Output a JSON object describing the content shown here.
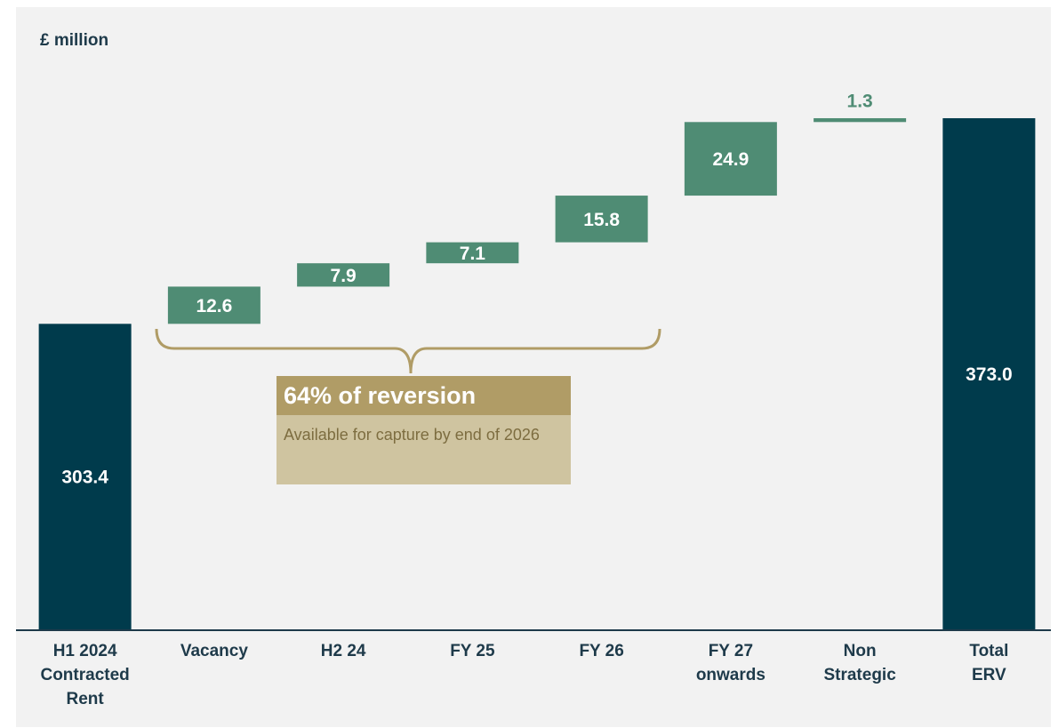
{
  "chart_data": {
    "type": "waterfall",
    "y_label": "£ million",
    "categories": [
      [
        "H1 2024",
        "Contracted",
        "Rent"
      ],
      [
        "Vacancy"
      ],
      [
        "H2 24"
      ],
      [
        "FY 25"
      ],
      [
        "FY 26"
      ],
      [
        "FY 27",
        "onwards"
      ],
      [
        "Non",
        "Strategic"
      ],
      [
        "Total",
        "ERV"
      ]
    ],
    "values": [
      303.4,
      12.6,
      7.9,
      7.1,
      15.8,
      24.9,
      1.3,
      373.0
    ],
    "value_labels": [
      "303.4",
      "12.6",
      "7.9",
      "7.1",
      "15.8",
      "24.9",
      "1.3",
      "373.0"
    ],
    "measure": [
      "absolute",
      "relative",
      "relative",
      "relative",
      "relative",
      "relative",
      "relative",
      "total"
    ],
    "total_color": "#003b4c",
    "delta_color": "#4f8c74",
    "ylim": [
      200,
      410
    ],
    "annotation": {
      "title": "64% of reversion",
      "text": "Available for capture by end of 2026"
    }
  }
}
